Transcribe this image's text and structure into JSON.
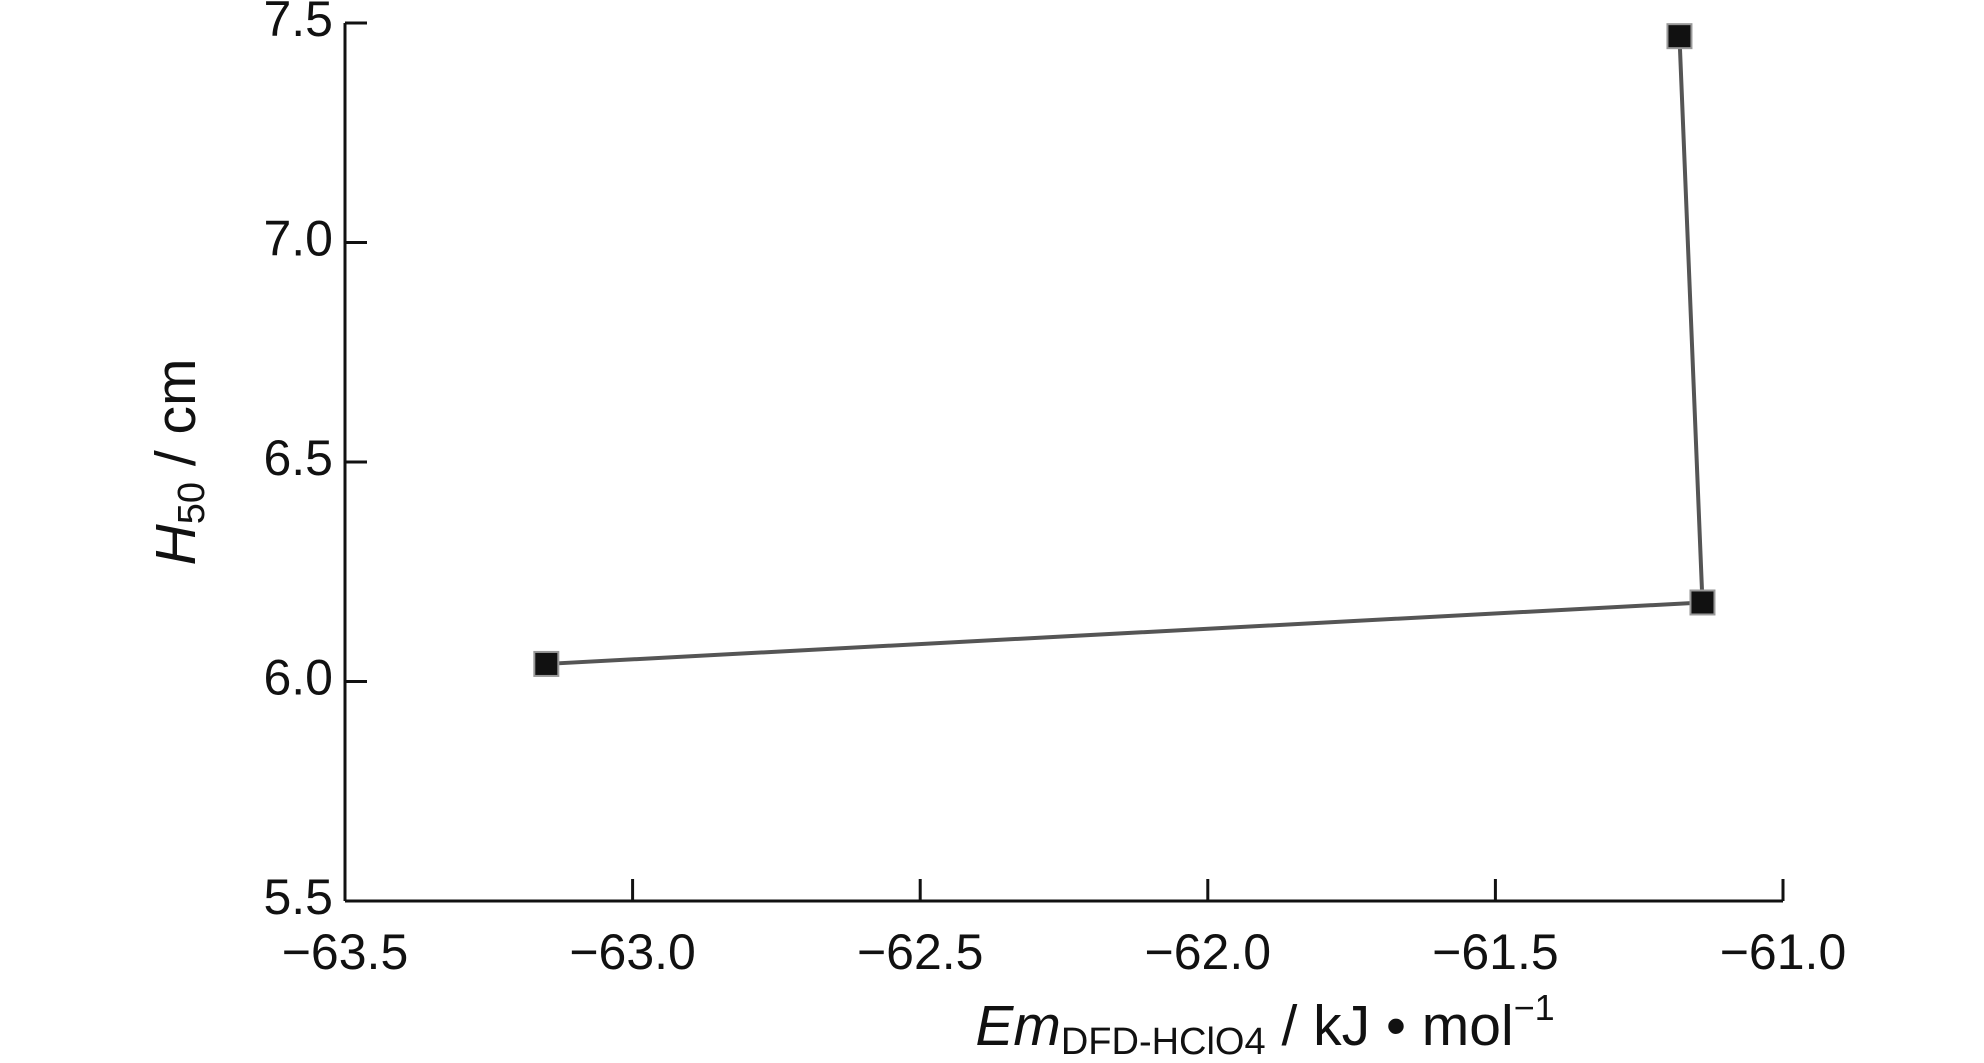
{
  "chart_data": {
    "type": "line",
    "x_label": {
      "main": "Em",
      "sub": "DFD-HClO4",
      "unit": " / kJ • mol",
      "sup": "−1"
    },
    "y_label": {
      "main": "H",
      "sub": "50",
      "unit": " / cm"
    },
    "series": [
      {
        "color": "#111111",
        "line_color": "#555555",
        "x": [
          -63.15,
          -61.14,
          -61.18
        ],
        "values": [
          6.04,
          6.18,
          7.47
        ]
      }
    ],
    "xlim": [
      -63.5,
      -61.0
    ],
    "xticks": [
      {
        "value": -63.5,
        "label": "−63.5"
      },
      {
        "value": -63.0,
        "label": "−63.0"
      },
      {
        "value": -62.5,
        "label": "−62.5"
      },
      {
        "value": -62.0,
        "label": "−62.0"
      },
      {
        "value": -61.5,
        "label": "−61.5"
      },
      {
        "value": -61.0,
        "label": "−61.0"
      }
    ],
    "ylim": [
      5.5,
      7.5
    ],
    "yticks": [
      5.5,
      {
        "value": 6.0,
        "label": "6.0"
      },
      6.5,
      {
        "value": 7.0,
        "label": "7.0"
      },
      7.5
    ],
    "grid": false
  }
}
